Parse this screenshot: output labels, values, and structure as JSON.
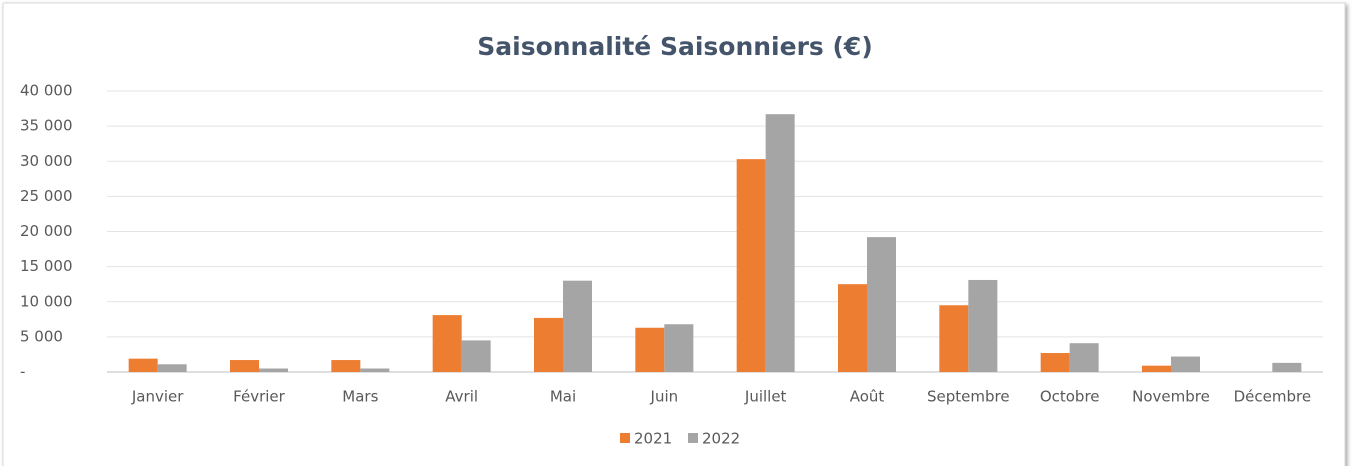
{
  "chart_data": {
    "type": "bar",
    "title": "Saisonnalité Saisonniers (€)",
    "categories": [
      "Janvier",
      "Février",
      "Mars",
      "Avril",
      "Mai",
      "Juin",
      "Juillet",
      "Août",
      "Septembre",
      "Octobre",
      "Novembre",
      "Décembre"
    ],
    "series": [
      {
        "name": "2021",
        "color": "#ed7d31",
        "values": [
          1900,
          1700,
          1700,
          8100,
          7700,
          6300,
          30300,
          12500,
          9500,
          2700,
          900,
          0
        ]
      },
      {
        "name": "2022",
        "color": "#a5a5a5",
        "values": [
          1100,
          500,
          500,
          4500,
          13000,
          6800,
          36700,
          19200,
          13100,
          4100,
          2200,
          1300
        ]
      }
    ],
    "ylim": [
      0,
      40000
    ],
    "yticks": [
      {
        "value": 0,
        "label": "-"
      },
      {
        "value": 5000,
        "label": "5 000"
      },
      {
        "value": 10000,
        "label": "10 000"
      },
      {
        "value": 15000,
        "label": "15 000"
      },
      {
        "value": 20000,
        "label": "20 000"
      },
      {
        "value": 25000,
        "label": "25 000"
      },
      {
        "value": 30000,
        "label": "30 000"
      },
      {
        "value": 35000,
        "label": "35 000"
      },
      {
        "value": 40000,
        "label": "40 000"
      }
    ],
    "grid": true,
    "legend": "bottom"
  }
}
